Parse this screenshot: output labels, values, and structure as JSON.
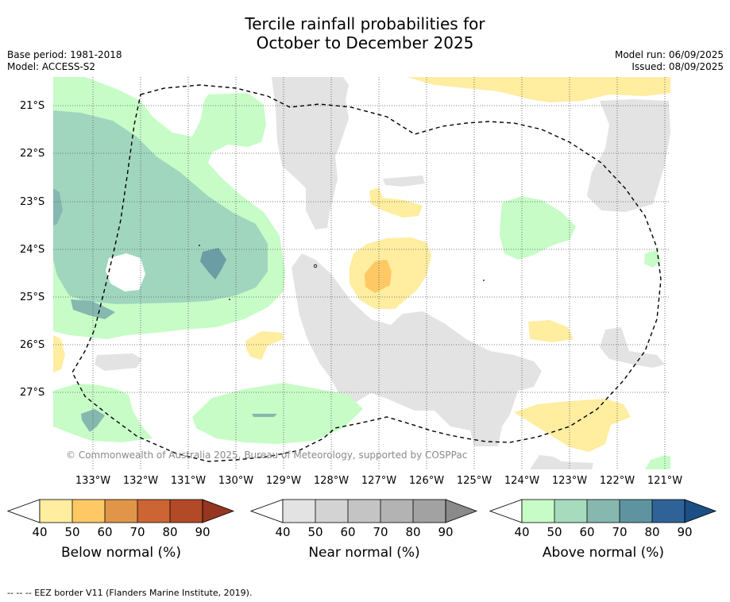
{
  "title": {
    "line1": "Tercile rainfall probabilities for",
    "line2": "October to December 2025"
  },
  "meta": {
    "base_period": "Base period: 1981-2018",
    "model": "Model: ACCESS-S2",
    "model_run": "Model run: 06/09/2025",
    "issued": "Issued: 08/09/2025"
  },
  "map": {
    "latitude_labels": [
      "21°S",
      "22°S",
      "23°S",
      "24°S",
      "25°S",
      "26°S",
      "27°S"
    ],
    "longitude_labels": [
      "133°W",
      "132°W",
      "131°W",
      "130°W",
      "129°W",
      "128°W",
      "127°W",
      "126°W",
      "125°W",
      "124°W",
      "123°W",
      "122°W",
      "121°W"
    ],
    "copyright": "© Commonwealth of Australia 2025, Bureau of Meteorology, supported by COSPPac",
    "colors": {
      "land_gray": "#e3e3e3",
      "below_40": "#ffeda0",
      "below_50": "#fec965",
      "above_40": "#c7fcc7",
      "above_50": "#a0d6be",
      "above_60": "#86b8b0",
      "above_70": "#6a9ea4",
      "eez_line": "#000000"
    }
  },
  "colorbars": [
    {
      "label": "Below normal (%)",
      "ticks": [
        "40",
        "50",
        "60",
        "70",
        "80",
        "90"
      ],
      "colors": [
        "#ffeda0",
        "#fec965",
        "#e09549",
        "#cd6433",
        "#b24a27",
        "#973620"
      ]
    },
    {
      "label": "Near normal (%)",
      "ticks": [
        "40",
        "50",
        "60",
        "70",
        "80",
        "90"
      ],
      "colors": [
        "#e3e3e3",
        "#d3d3d3",
        "#c4c4c4",
        "#b3b3b3",
        "#a2a2a2",
        "#8a8a8a"
      ]
    },
    {
      "label": "Above normal (%)",
      "ticks": [
        "40",
        "50",
        "60",
        "70",
        "80",
        "90"
      ],
      "colors": [
        "#c7fcc7",
        "#a6dbbd",
        "#86b8b0",
        "#5d94a0",
        "#2f6397",
        "#1c4f85"
      ]
    }
  ],
  "footnote": "--  --  -- EEZ border V11 (Flanders Marine Institute, 2019)."
}
